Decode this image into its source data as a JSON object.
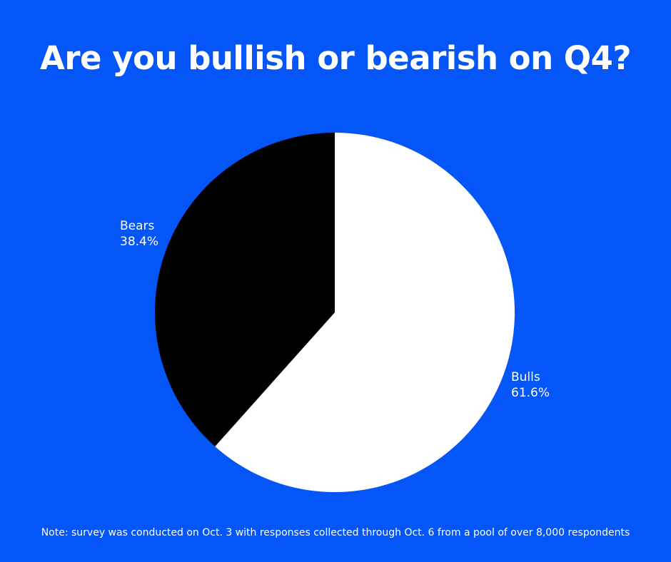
{
  "chart_data": {
    "type": "pie",
    "title": "Are you bullish or bearish on Q4?",
    "slices": [
      {
        "label": "Bulls",
        "value": 61.6,
        "display": "61.6%",
        "color": "#ffffff"
      },
      {
        "label": "Bears",
        "value": 38.4,
        "display": "38.4%",
        "color": "#000000"
      }
    ],
    "start": "12 o'clock",
    "direction": "clockwise",
    "note": "Note: survey was conducted on Oct. 3 with responses collected through Oct. 6 from a pool of over 8,000 respondents"
  },
  "colors": {
    "background": "#0556f8",
    "text": "#ffffff"
  }
}
